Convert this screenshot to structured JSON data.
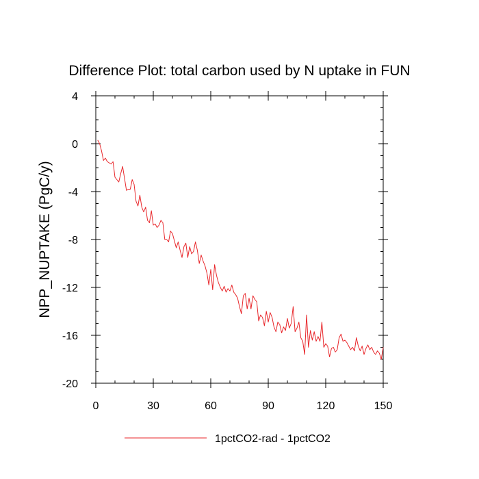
{
  "chart_data": {
    "type": "line",
    "title": "Difference Plot: total carbon used by N uptake in FUN",
    "xlabel": "",
    "ylabel": "NPP_NUPTAKE  (PgC/y)",
    "xlim": [
      0,
      150
    ],
    "ylim": [
      -20,
      4
    ],
    "xticks": [
      0,
      30,
      60,
      90,
      120,
      150
    ],
    "yticks": [
      4,
      0,
      -4,
      -8,
      -12,
      -16,
      -20
    ],
    "grid": false,
    "legend_position": "bottom-center",
    "series": [
      {
        "name": "1pctCO2-rad - 1pctCO2",
        "color": "#e8262a",
        "x": [
          1,
          2,
          3,
          4,
          5,
          6,
          7,
          8,
          9,
          10,
          11,
          12,
          13,
          14,
          15,
          16,
          17,
          18,
          19,
          20,
          21,
          22,
          23,
          24,
          25,
          26,
          27,
          28,
          29,
          30,
          31,
          32,
          33,
          34,
          35,
          36,
          37,
          38,
          39,
          40,
          41,
          42,
          43,
          44,
          45,
          46,
          47,
          48,
          49,
          50,
          51,
          52,
          53,
          54,
          55,
          56,
          57,
          58,
          59,
          60,
          61,
          62,
          63,
          64,
          65,
          66,
          67,
          68,
          69,
          70,
          71,
          72,
          73,
          74,
          75,
          76,
          77,
          78,
          79,
          80,
          81,
          82,
          83,
          84,
          85,
          86,
          87,
          88,
          89,
          90,
          91,
          92,
          93,
          94,
          95,
          96,
          97,
          98,
          99,
          100,
          101,
          102,
          103,
          104,
          105,
          106,
          107,
          108,
          109,
          110,
          111,
          112,
          113,
          114,
          115,
          116,
          117,
          118,
          119,
          120,
          121,
          122,
          123,
          124,
          125,
          126,
          127,
          128,
          129,
          130,
          131,
          132,
          133,
          134,
          135,
          136,
          137,
          138,
          139,
          140,
          141,
          142,
          143,
          144,
          145,
          146,
          147,
          148,
          149,
          150
        ],
        "y": [
          0.3,
          0.0,
          -0.6,
          -1.4,
          -1.2,
          -1.5,
          -1.6,
          -1.7,
          -1.5,
          -2.8,
          -3.0,
          -3.2,
          -2.5,
          -1.9,
          -2.9,
          -3.9,
          -3.8,
          -3.8,
          -3.0,
          -3.4,
          -4.8,
          -5.2,
          -4.3,
          -5.3,
          -5.7,
          -5.3,
          -6.4,
          -6.6,
          -5.6,
          -6.8,
          -6.7,
          -7.0,
          -6.8,
          -6.4,
          -6.6,
          -8.0,
          -8.0,
          -8.2,
          -7.3,
          -7.5,
          -8.1,
          -8.7,
          -8.2,
          -8.9,
          -9.5,
          -8.6,
          -8.3,
          -9.5,
          -8.6,
          -9.2,
          -9.0,
          -8.2,
          -8.9,
          -10.0,
          -9.3,
          -9.8,
          -10.2,
          -10.8,
          -11.8,
          -10.5,
          -12.2,
          -10.1,
          -11.0,
          -11.6,
          -12.0,
          -12.3,
          -11.9,
          -12.4,
          -12.1,
          -12.3,
          -11.8,
          -12.4,
          -12.6,
          -12.9,
          -13.6,
          -14.2,
          -12.7,
          -12.5,
          -13.8,
          -12.9,
          -13.8,
          -12.7,
          -13.0,
          -13.2,
          -14.8,
          -14.3,
          -14.5,
          -15.2,
          -14.0,
          -14.9,
          -14.1,
          -14.5,
          -15.3,
          -15.7,
          -14.9,
          -15.1,
          -15.8,
          -15.3,
          -15.6,
          -14.6,
          -15.4,
          -15.0,
          -13.6,
          -15.7,
          -15.4,
          -14.9,
          -16.2,
          -16.5,
          -17.6,
          -14.3,
          -17.0,
          -15.6,
          -16.4,
          -15.7,
          -16.5,
          -16.1,
          -16.5,
          -14.9,
          -17.0,
          -16.7,
          -16.9,
          -17.8,
          -17.1,
          -17.0,
          -17.4,
          -17.2,
          -16.2,
          -15.9,
          -16.5,
          -16.4,
          -16.6,
          -16.9,
          -17.2,
          -17.0,
          -17.3,
          -16.2,
          -16.9,
          -17.3,
          -16.9,
          -17.6,
          -17.1,
          -16.8,
          -17.2,
          -17.0,
          -17.4,
          -17.6,
          -17.3,
          -17.5,
          -18.0,
          -17.0
        ],
        "note": "values estimated from plot"
      }
    ]
  }
}
